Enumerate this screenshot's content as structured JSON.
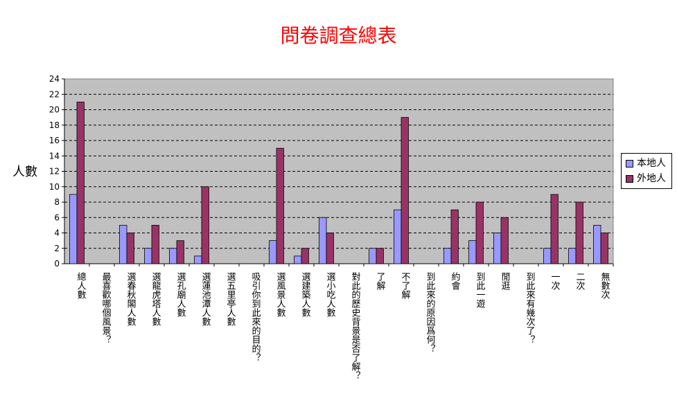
{
  "colors": {
    "plot_bg": "#c0c0c0",
    "title": "#ff0000",
    "series_local": "#9999ff",
    "series_foreign": "#993366"
  },
  "chart_data": {
    "type": "bar",
    "title": "問卷調查總表",
    "ylabel": "人數",
    "xlabel": "",
    "ylim": [
      0,
      24
    ],
    "y_ticks": [
      0,
      2,
      4,
      6,
      8,
      10,
      12,
      14,
      16,
      18,
      20,
      22,
      24
    ],
    "grid": true,
    "legend_position": "right",
    "categories": [
      "總人數",
      "最喜歡哪個風景？",
      "選春秋閣人數",
      "選龍虎塔人數",
      "選孔廟人數",
      "選蓮池潭人數",
      "選五里亭人數",
      "吸引你到此來的目的？",
      "選風景人數",
      "選建築人數",
      "選小吃人數",
      "對此的歷史背景是否了解？",
      "了解",
      "不了解",
      "到此來的原因爲何？",
      "約會",
      "到此一遊",
      "閒逛",
      "到此來有幾次了？",
      "一次",
      "二次",
      "無數次"
    ],
    "series": [
      {
        "name": "本地人",
        "values": [
          9,
          null,
          5,
          2,
          2,
          1,
          null,
          null,
          3,
          1,
          6,
          null,
          2,
          7,
          null,
          2,
          3,
          4,
          null,
          2,
          2,
          5
        ]
      },
      {
        "name": "外地人",
        "values": [
          21,
          null,
          4,
          5,
          3,
          10,
          null,
          null,
          15,
          2,
          4,
          null,
          2,
          19,
          null,
          7,
          8,
          6,
          null,
          9,
          8,
          4
        ]
      }
    ]
  }
}
